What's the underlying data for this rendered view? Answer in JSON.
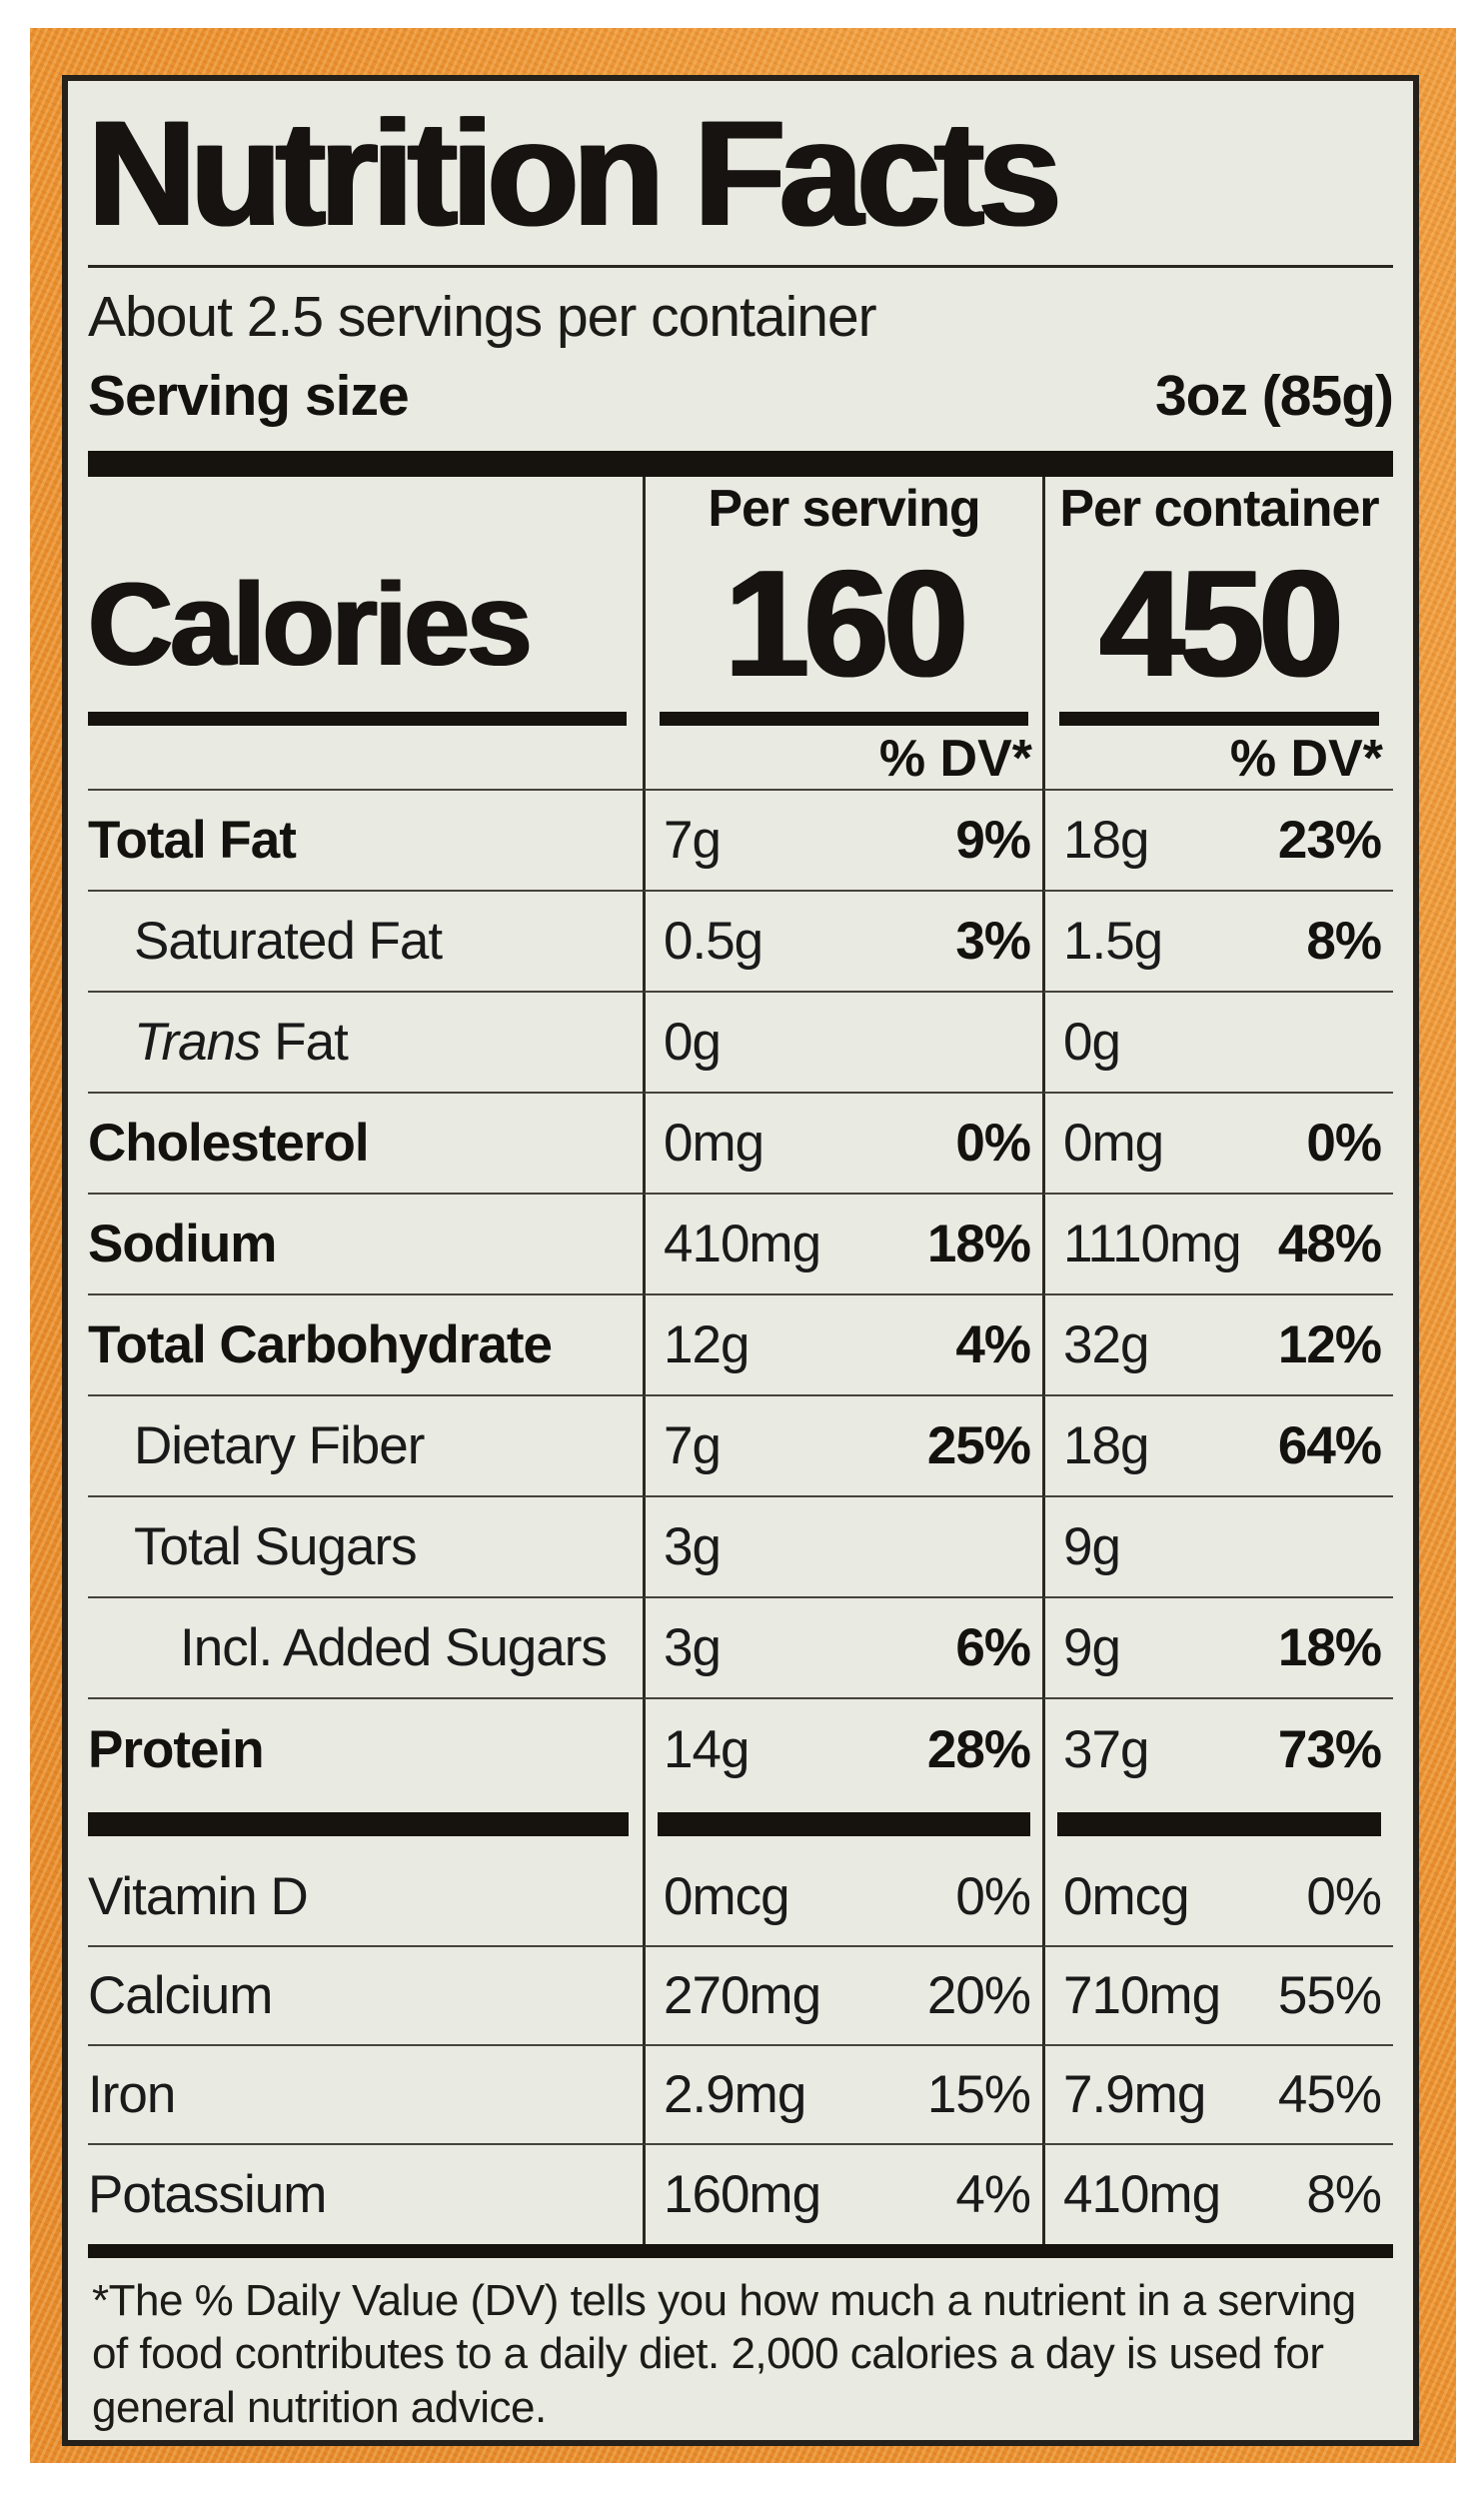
{
  "colors": {
    "background_orange": "#E98F2E",
    "label_background": "#E9EAE2",
    "text_black": "#1A1A1A"
  },
  "nutrition_label": {
    "title": "Nutrition Facts",
    "servings_statement": "About 2.5 servings per container",
    "serving_size": {
      "label": "Serving size",
      "value": "3oz (85g)"
    },
    "columns": {
      "per_serving": "Per serving",
      "per_container": "Per container",
      "dv_header": "% DV*"
    },
    "calories": {
      "label": "Calories",
      "per_serving": "160",
      "per_container": "450"
    },
    "nutrients": [
      {
        "name": "Total Fat",
        "serving_amount": "7g",
        "serving_dv": "9%",
        "container_amount": "18g",
        "container_dv": "23%"
      },
      {
        "name": "Saturated Fat",
        "serving_amount": "0.5g",
        "serving_dv": "3%",
        "container_amount": "1.5g",
        "container_dv": "8%"
      },
      {
        "name_italic": "Trans",
        "name_rest": "Fat",
        "serving_amount": "0g",
        "serving_dv": "",
        "container_amount": "0g",
        "container_dv": ""
      },
      {
        "name": "Cholesterol",
        "serving_amount": "0mg",
        "serving_dv": "0%",
        "container_amount": "0mg",
        "container_dv": "0%"
      },
      {
        "name": "Sodium",
        "serving_amount": "410mg",
        "serving_dv": "18%",
        "container_amount": "1110mg",
        "container_dv": "48%"
      },
      {
        "name": "Total Carbohydrate",
        "serving_amount": "12g",
        "serving_dv": "4%",
        "container_amount": "32g",
        "container_dv": "12%"
      },
      {
        "name": "Dietary Fiber",
        "serving_amount": "7g",
        "serving_dv": "25%",
        "container_amount": "18g",
        "container_dv": "64%"
      },
      {
        "name": "Total Sugars",
        "serving_amount": "3g",
        "serving_dv": "",
        "container_amount": "9g",
        "container_dv": ""
      },
      {
        "name": "Incl. Added Sugars",
        "serving_amount": "3g",
        "serving_dv": "6%",
        "container_amount": "9g",
        "container_dv": "18%"
      },
      {
        "name": "Protein",
        "serving_amount": "14g",
        "serving_dv": "28%",
        "container_amount": "37g",
        "container_dv": "73%"
      }
    ],
    "micronutrients": [
      {
        "name": "Vitamin D",
        "serving_amount": "0mcg",
        "serving_dv": "0%",
        "container_amount": "0mcg",
        "container_dv": "0%"
      },
      {
        "name": "Calcium",
        "serving_amount": "270mg",
        "serving_dv": "20%",
        "container_amount": "710mg",
        "container_dv": "55%"
      },
      {
        "name": "Iron",
        "serving_amount": "2.9mg",
        "serving_dv": "15%",
        "container_amount": "7.9mg",
        "container_dv": "45%"
      },
      {
        "name": "Potassium",
        "serving_amount": "160mg",
        "serving_dv": "4%",
        "container_amount": "410mg",
        "container_dv": "8%"
      }
    ],
    "footnote": "*The % Daily Value (DV) tells you how much a nutrient in a serving of food contributes to a daily diet. 2,000 calories a day is used for general nutrition advice."
  }
}
